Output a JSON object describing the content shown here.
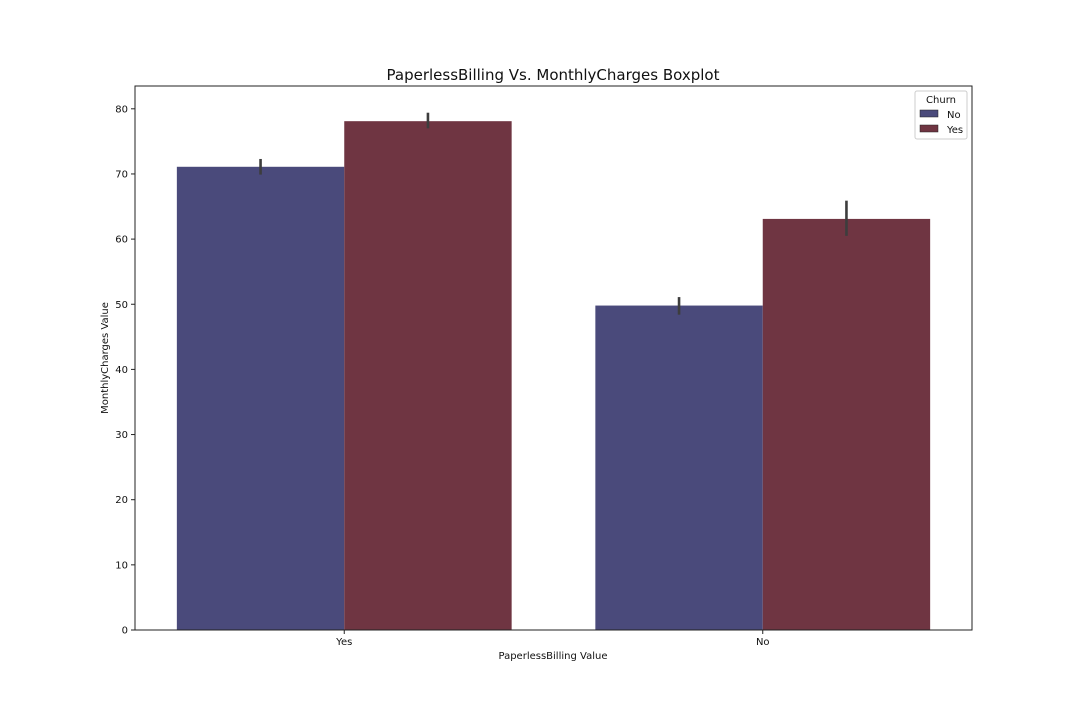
{
  "chart_data": {
    "type": "bar",
    "title": "PaperlessBilling Vs. MonthlyCharges Boxplot",
    "xlabel": "PaperlessBilling Value",
    "ylabel": "MonthlyCharges Value",
    "categories": [
      "Yes",
      "No"
    ],
    "series": [
      {
        "name": "No",
        "color": "#4a4a7b",
        "values": [
          71.1,
          49.8
        ],
        "ci_low": [
          69.9,
          48.4
        ],
        "ci_high": [
          72.3,
          51.1
        ]
      },
      {
        "name": "Yes",
        "color": "#6f3542",
        "values": [
          78.1,
          63.1
        ],
        "ci_low": [
          77.0,
          60.5
        ],
        "ci_high": [
          79.4,
          65.9
        ]
      }
    ],
    "ylim": [
      0,
      83.5
    ],
    "yticks": [
      0,
      10,
      20,
      30,
      40,
      50,
      60,
      70,
      80
    ],
    "legend": {
      "title": "Churn",
      "placement": "top-right"
    },
    "grid": false
  }
}
